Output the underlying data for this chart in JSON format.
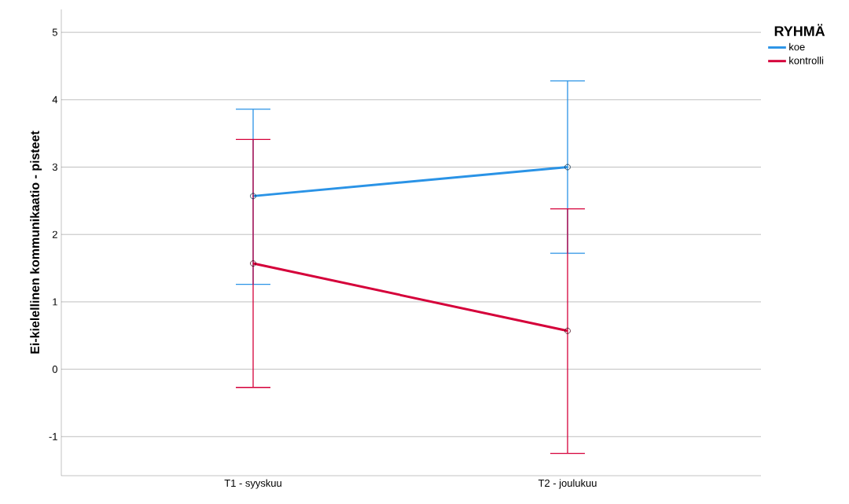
{
  "chart_data": {
    "type": "line",
    "ylabel": "Ei-kielellinen kommunikaatio - pisteet",
    "legend_title": "RYHMÄ",
    "categories": [
      "T1 - syyskuu",
      "T2 - joulukuu"
    ],
    "series": [
      {
        "name": "koe",
        "color": "#2a93e6",
        "values": [
          2.57,
          3.0
        ],
        "errors": [
          [
            1.26,
            3.86
          ],
          [
            1.72,
            4.28
          ]
        ]
      },
      {
        "name": "kontrolli",
        "color": "#d5003a",
        "values": [
          1.57,
          0.57
        ],
        "errors": [
          [
            -0.27,
            3.41
          ],
          [
            -1.25,
            2.38
          ]
        ]
      }
    ],
    "ylim": [
      -1.58,
      5.34
    ],
    "yticks": [
      -1,
      0,
      1,
      2,
      3,
      4,
      5
    ],
    "grid": "y",
    "legend": "top right",
    "marker": "circle",
    "line_style": "solid"
  }
}
